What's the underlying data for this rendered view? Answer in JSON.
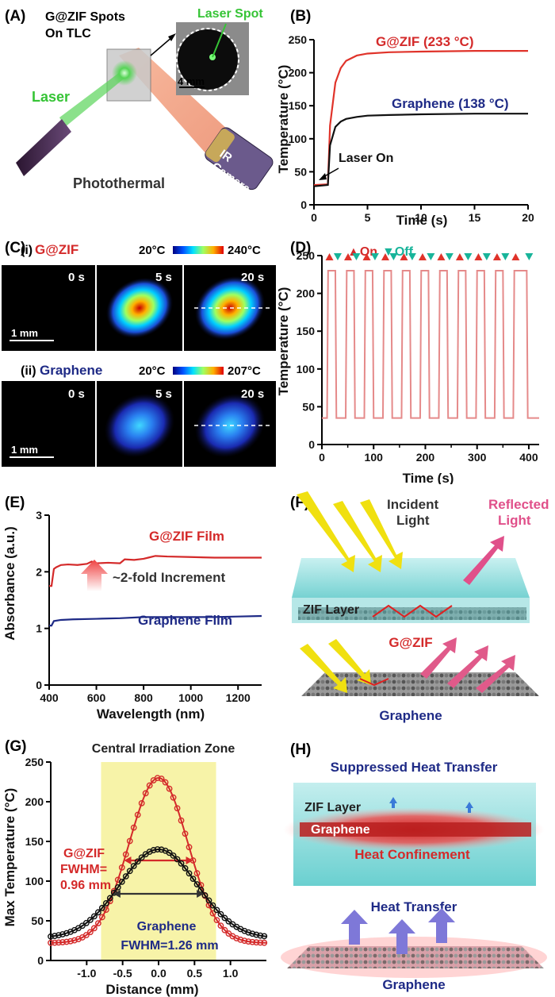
{
  "panelA": {
    "label": "(A)",
    "spots_label": "G@ZIF Spots",
    "spots_label2": "On TLC",
    "laser_spot": "Laser Spot",
    "scale": "4 mm",
    "laser": "Laser",
    "photothermal": "Photothermal",
    "camera1": "IR",
    "camera2": "Camera",
    "colors": {
      "laser": "#36c436",
      "ir_beam": "#f08a62"
    }
  },
  "panelB": {
    "label": "(B)",
    "annot_gzif": "G@ZIF (233 °C)",
    "annot_graphene": "Graphene (138 °C)",
    "annot_laser": "Laser On",
    "chart_data": {
      "type": "line",
      "xlabel": "Time (s)",
      "ylabel": "Temperature (°C)",
      "xlim": [
        0,
        20
      ],
      "ylim": [
        0,
        250
      ],
      "xticks": [
        0,
        5,
        10,
        15,
        20
      ],
      "yticks": [
        0,
        50,
        100,
        150,
        200,
        250
      ],
      "series": [
        {
          "name": "G@ZIF (233 °C)",
          "color": "#e0332a",
          "x": [
            0,
            1.3,
            1.5,
            2,
            2.5,
            3,
            4,
            5,
            7,
            10,
            15,
            20
          ],
          "y": [
            30,
            31,
            120,
            185,
            207,
            218,
            226,
            229,
            231,
            232,
            233,
            233
          ]
        },
        {
          "name": "Graphene (138 °C)",
          "color": "#111111",
          "x": [
            0,
            1.3,
            1.5,
            2,
            2.5,
            3,
            4,
            5,
            7,
            10,
            15,
            20
          ],
          "y": [
            28,
            30,
            90,
            118,
            126,
            130,
            133,
            135,
            136,
            137,
            138,
            138
          ]
        }
      ]
    }
  },
  "panelC": {
    "label": "(C)",
    "row1_label": "(i)",
    "row1_name": "G@ZIF",
    "row1_scale_min": "20°C",
    "row1_scale_max": "240°C",
    "row2_label": "(ii)",
    "row2_name": "Graphene",
    "row2_scale_min": "20°C",
    "row2_scale_max": "207°C",
    "times": [
      "0 s",
      "5 s",
      "20 s"
    ],
    "scalebar": "1 mm"
  },
  "panelD": {
    "label": "(D)",
    "legend_on": "▲On",
    "legend_off": "▼Off",
    "chart_data": {
      "type": "line",
      "xlabel": "Time (s)",
      "ylabel": "Temperature (°C)",
      "xlim": [
        0,
        420
      ],
      "ylim": [
        0,
        250
      ],
      "xticks": [
        0,
        100,
        200,
        300,
        400
      ],
      "xminor": [
        50,
        150,
        250,
        350
      ],
      "yticks": [
        0,
        50,
        100,
        150,
        200,
        250
      ],
      "series": [
        {
          "name": "On/Off cycling",
          "color": "#e58a8a",
          "on_times": [
            10,
            46,
            82,
            118,
            154,
            190,
            226,
            262,
            298,
            334,
            370
          ],
          "off_times": [
            26,
            62,
            98,
            134,
            170,
            206,
            242,
            278,
            314,
            350,
            396
          ],
          "high": 230,
          "low": 35
        }
      ],
      "marker_colors": {
        "on": "#e0332a",
        "off": "#18b49a"
      }
    }
  },
  "panelE": {
    "label": "(E)",
    "annot_gzif": "G@ZIF Film",
    "annot_increment": "~2-fold Increment",
    "annot_graphene": "Graphene Film",
    "chart_data": {
      "type": "line",
      "xlabel": "Wavelength (nm)",
      "ylabel": "Absorbance (a.u.)",
      "xlim": [
        400,
        1300
      ],
      "ylim": [
        0,
        3
      ],
      "xticks": [
        400,
        600,
        800,
        1000,
        1200
      ],
      "yticks": [
        0,
        1,
        2,
        3
      ],
      "series": [
        {
          "name": "G@ZIF Film",
          "color": "#d42a2a",
          "x": [
            400,
            410,
            420,
            430,
            450,
            480,
            520,
            560,
            580,
            600,
            650,
            700,
            720,
            760,
            800,
            820,
            850,
            900,
            1000,
            1100,
            1200,
            1300
          ],
          "y": [
            1.75,
            1.75,
            2.05,
            2.08,
            2.12,
            2.13,
            2.12,
            2.14,
            2.18,
            2.15,
            2.16,
            2.15,
            2.22,
            2.21,
            2.23,
            2.25,
            2.28,
            2.27,
            2.26,
            2.25,
            2.25,
            2.25
          ]
        },
        {
          "name": "Graphene Film",
          "color": "#1e2a86",
          "x": [
            400,
            410,
            420,
            450,
            500,
            600,
            700,
            800,
            900,
            1000,
            1100,
            1200,
            1300
          ],
          "y": [
            1.05,
            1.05,
            1.13,
            1.15,
            1.16,
            1.17,
            1.18,
            1.2,
            1.2,
            1.2,
            1.2,
            1.21,
            1.22
          ]
        }
      ]
    }
  },
  "panelF": {
    "label": "(F)",
    "incident1": "Incident",
    "incident2": "Light",
    "reflected1": "Reflected",
    "reflected2": "Light",
    "zif_layer": "ZIF Layer",
    "gzif": "G@ZIF",
    "graphene": "Graphene"
  },
  "panelG": {
    "label": "(G)",
    "zone": "Central Irradiation Zone",
    "gzif1": "G@ZIF",
    "gzif2": "FWHM=",
    "gzif3": "0.96 mm",
    "graphene1": "Graphene",
    "graphene2": "FWHM=1.26 mm",
    "chart_data": {
      "type": "scatter",
      "xlabel": "Distance (mm)",
      "ylabel": "Max Temperature (°C)",
      "xlim": [
        -1.5,
        1.5
      ],
      "ylim": [
        0,
        250
      ],
      "xticks": [
        -1.0,
        -0.5,
        0.0,
        0.5,
        1.0
      ],
      "yticks": [
        0,
        50,
        100,
        150,
        200,
        250
      ],
      "zone_x": [
        -0.8,
        0.8
      ],
      "series": [
        {
          "name": "G@ZIF",
          "color": "#d42a2a",
          "peak": 230,
          "base": 22,
          "fwhm": 0.96
        },
        {
          "name": "Graphene",
          "color": "#111111",
          "peak": 140,
          "base": 28,
          "fwhm": 1.26
        }
      ]
    }
  },
  "panelH": {
    "label": "(H)",
    "suppressed": "Suppressed Heat Transfer",
    "zif_layer": "ZIF Layer",
    "graphene_in": "Graphene",
    "confinement": "Heat Confinement",
    "heat_transfer": "Heat Transfer",
    "graphene": "Graphene"
  }
}
